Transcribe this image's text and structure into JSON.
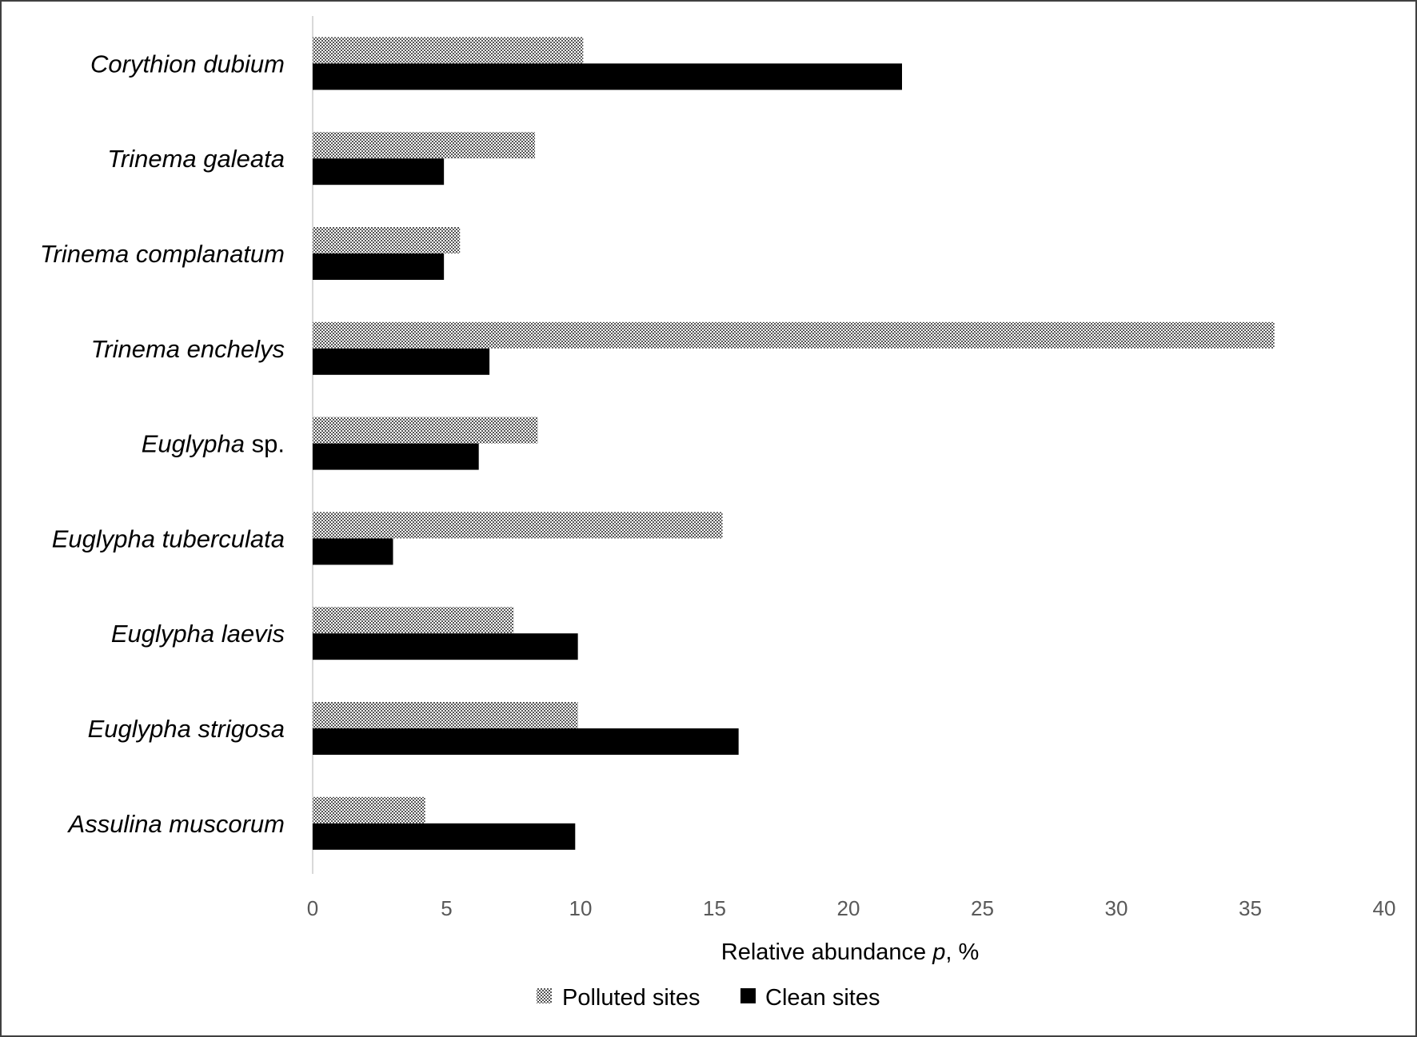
{
  "chart_data": {
    "type": "bar",
    "orientation": "horizontal",
    "categories": [
      {
        "name": "Corythion dubium",
        "suffix": ""
      },
      {
        "name": "Trinema galeata",
        "suffix": ""
      },
      {
        "name": "Trinema complanatum",
        "suffix": ""
      },
      {
        "name": "Trinema enchelys",
        "suffix": ""
      },
      {
        "name": "Euglypha",
        "suffix": "sp."
      },
      {
        "name": "Euglypha tuberculata",
        "suffix": ""
      },
      {
        "name": "Euglypha laevis",
        "suffix": ""
      },
      {
        "name": "Euglypha strigosa",
        "suffix": ""
      },
      {
        "name": "Assulina muscorum",
        "suffix": ""
      }
    ],
    "series": [
      {
        "name": "Polluted sites",
        "pattern": "checker",
        "color": "#808080",
        "values": [
          10.1,
          8.3,
          5.5,
          35.9,
          8.4,
          15.3,
          7.5,
          9.9,
          4.2
        ]
      },
      {
        "name": "Clean sites",
        "pattern": "solid",
        "color": "#000000",
        "values": [
          22.0,
          4.9,
          4.9,
          6.6,
          6.2,
          3.0,
          9.9,
          15.9,
          9.8
        ]
      }
    ],
    "xlim": [
      0,
      40
    ],
    "xticks": [
      "0",
      "5",
      "10",
      "15",
      "20",
      "25",
      "30",
      "35",
      "40"
    ],
    "xlabel": {
      "before": "Relative abundance ",
      "italic": "p",
      "after": ", %"
    },
    "ylabel": "",
    "grid": false,
    "legend_position": "bottom"
  }
}
